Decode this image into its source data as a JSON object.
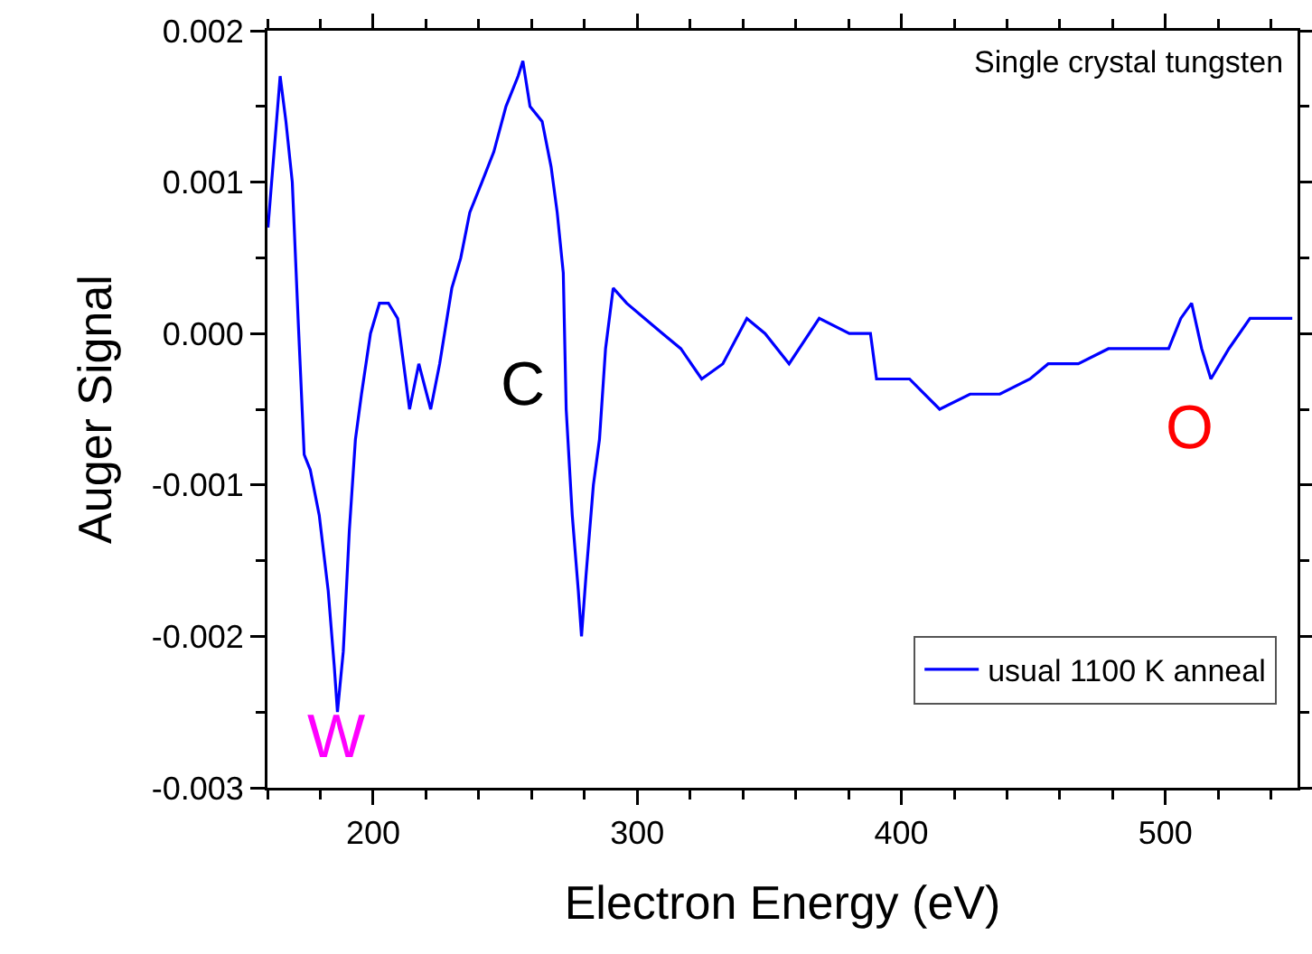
{
  "chart_data": {
    "type": "line",
    "xlabel": "Electron Energy (eV)",
    "ylabel": "Auger Signal",
    "x": [
      160.2,
      164.8,
      167,
      169.4,
      171.6,
      173.9,
      176.2,
      179.6,
      183,
      185.3,
      186.5,
      188.7,
      191,
      193.3,
      195.6,
      199,
      202.4,
      205.8,
      209.3,
      213.8,
      217.3,
      221.8,
      225.2,
      229.8,
      233.2,
      236.6,
      241.2,
      245.7,
      250.3,
      254.9,
      256.7,
      259.4,
      264,
      267.4,
      269.7,
      272,
      273.1,
      275.4,
      277.7,
      278.9,
      280.6,
      283.4,
      285.7,
      288,
      290.9,
      296,
      302.8,
      309.6,
      316.5,
      324.4,
      332.4,
      341.5,
      348.4,
      357.5,
      368.9,
      380.3,
      388.3,
      390.6,
      403.1,
      414.5,
      426,
      437.3,
      448.7,
      455.6,
      467,
      478.4,
      489.8,
      501.2,
      505.8,
      509.9,
      513.7,
      517.2,
      524,
      532,
      540,
      548
    ],
    "series": [
      {
        "name": "usual 1100 K anneal",
        "color": "#0000ff",
        "values": [
          0.0007,
          0.0017,
          0.0014,
          0.001,
          0.0001,
          -0.0008,
          -0.0009,
          -0.0012,
          -0.0017,
          -0.0022,
          -0.0025,
          -0.0021,
          -0.0013,
          -0.0007,
          -0.0004,
          0,
          0.0002,
          0.0002,
          0.0001,
          -0.0005,
          -0.0002,
          -0.0005,
          -0.0002,
          0.0003,
          0.0005,
          0.0008,
          0.001,
          0.0012,
          0.0015,
          0.0017,
          0.0018,
          0.0015,
          0.0014,
          0.0011,
          0.0008,
          0.0004,
          -0.0005,
          -0.0012,
          -0.0017,
          -0.002,
          -0.0016,
          -0.001,
          -0.0007,
          -0.0001,
          0.0003,
          0.0002,
          0.0001,
          0,
          -0.0001,
          -0.0003,
          -0.0002,
          0.0001,
          0,
          -0.0002,
          0.0001,
          0,
          0,
          -0.0003,
          -0.0003,
          -0.0005,
          -0.0004,
          -0.0004,
          -0.0003,
          -0.0002,
          -0.0002,
          -0.0001,
          -0.0001,
          -0.0001,
          0.0001,
          0.0002,
          -0.0001,
          -0.0003,
          -0.0001,
          0.0001,
          0.0001,
          0.0001
        ]
      }
    ],
    "xlim": [
      160,
      550
    ],
    "xticks": [
      200,
      300,
      400,
      500
    ],
    "ylim": [
      -0.003,
      0.002
    ],
    "yticks": [
      {
        "value": -0.003,
        "label": "-0.003"
      },
      {
        "value": -0.002,
        "label": "-0.002"
      },
      {
        "value": -0.001,
        "label": "-0.001"
      },
      {
        "value": 0,
        "label": "0.000"
      },
      {
        "value": 0.001,
        "label": "0.001"
      },
      {
        "value": 0.002,
        "label": "0.002"
      }
    ],
    "grid": false,
    "legend": "bottom right",
    "line_style": "solid",
    "marker": "none",
    "annotations": [
      "Single crystal tungsten",
      "W",
      "C",
      "O"
    ]
  }
}
